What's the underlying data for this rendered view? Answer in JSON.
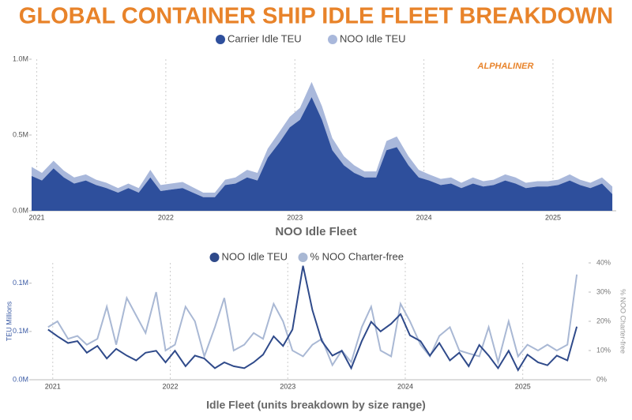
{
  "chart_data": [
    {
      "type": "area",
      "stacked": true,
      "title": "GLOBAL CONTAINER SHIP IDLE FLEET BREAKDOWN",
      "annotation": "ALPHALINER",
      "x": [
        2020.96,
        2021.04,
        2021.13,
        2021.21,
        2021.29,
        2021.38,
        2021.46,
        2021.54,
        2021.63,
        2021.71,
        2021.79,
        2021.88,
        2021.96,
        2022.04,
        2022.13,
        2022.21,
        2022.29,
        2022.38,
        2022.46,
        2022.54,
        2022.63,
        2022.71,
        2022.79,
        2022.88,
        2022.96,
        2023.04,
        2023.13,
        2023.21,
        2023.29,
        2023.38,
        2023.46,
        2023.54,
        2023.63,
        2023.71,
        2023.79,
        2023.88,
        2023.96,
        2024.04,
        2024.13,
        2024.21,
        2024.29,
        2024.38,
        2024.46,
        2024.54,
        2024.63,
        2024.71,
        2024.79,
        2024.88,
        2024.96,
        2025.04,
        2025.13,
        2025.21,
        2025.29,
        2025.38,
        2025.46
      ],
      "series": [
        {
          "name": "Carrier Idle TEU",
          "color": "#2e4f9c",
          "values": [
            230000,
            200000,
            280000,
            220000,
            180000,
            200000,
            170000,
            150000,
            120000,
            150000,
            120000,
            220000,
            130000,
            140000,
            150000,
            120000,
            90000,
            90000,
            170000,
            180000,
            220000,
            200000,
            350000,
            450000,
            550000,
            600000,
            750000,
            600000,
            400000,
            300000,
            250000,
            220000,
            220000,
            400000,
            420000,
            300000,
            220000,
            200000,
            170000,
            180000,
            150000,
            180000,
            160000,
            170000,
            200000,
            180000,
            150000,
            160000,
            160000,
            170000,
            200000,
            170000,
            150000,
            180000,
            110000
          ]
        },
        {
          "name": "NOO Idle TEU",
          "color": "#a9b8db",
          "values": [
            60000,
            50000,
            50000,
            45000,
            40000,
            40000,
            35000,
            35000,
            30000,
            30000,
            30000,
            50000,
            40000,
            40000,
            40000,
            35000,
            30000,
            30000,
            35000,
            40000,
            50000,
            50000,
            60000,
            70000,
            70000,
            80000,
            100000,
            90000,
            80000,
            60000,
            50000,
            40000,
            40000,
            60000,
            70000,
            60000,
            50000,
            40000,
            40000,
            40000,
            35000,
            40000,
            35000,
            35000,
            40000,
            40000,
            35000,
            35000,
            35000,
            35000,
            40000,
            35000,
            35000,
            40000,
            50000
          ]
        }
      ],
      "xlim": [
        2020.96,
        2025.49
      ],
      "xticks": [
        2021,
        2022,
        2023,
        2024,
        2025
      ],
      "ylim": [
        0,
        1000000
      ],
      "yticks": [
        {
          "value": 0,
          "label": "0.0M"
        },
        {
          "value": 500000,
          "label": "0.5M"
        },
        {
          "value": 1000000,
          "label": "1.0M"
        }
      ],
      "grid": true
    },
    {
      "type": "line",
      "title": "NOO Idle Fleet",
      "xlabel": "Idle Fleet (units breakdown by size range)",
      "ylabel": "TEU Millions",
      "y2label": "% NOO Charter-free",
      "x": [
        2020.96,
        2021.04,
        2021.13,
        2021.21,
        2021.29,
        2021.38,
        2021.46,
        2021.54,
        2021.63,
        2021.71,
        2021.79,
        2021.88,
        2021.96,
        2022.04,
        2022.13,
        2022.21,
        2022.29,
        2022.38,
        2022.46,
        2022.54,
        2022.63,
        2022.71,
        2022.79,
        2022.88,
        2022.96,
        2023.04,
        2023.13,
        2023.21,
        2023.29,
        2023.38,
        2023.46,
        2023.54,
        2023.63,
        2023.71,
        2023.79,
        2023.88,
        2023.96,
        2024.04,
        2024.13,
        2024.21,
        2024.29,
        2024.38,
        2024.46,
        2024.54,
        2024.63,
        2024.71,
        2024.79,
        2024.88,
        2024.96,
        2025.04,
        2025.13,
        2025.21,
        2025.29,
        2025.38,
        2025.46
      ],
      "series": [
        {
          "name": "NOO Idle TEU",
          "color": "#2f4a8a",
          "values": [
            52000,
            45000,
            38000,
            40000,
            28000,
            35000,
            22000,
            32000,
            25000,
            20000,
            28000,
            30000,
            18000,
            30000,
            14000,
            25000,
            22000,
            12000,
            18000,
            14000,
            12000,
            18000,
            26000,
            45000,
            35000,
            52000,
            118000,
            72000,
            40000,
            25000,
            30000,
            12000,
            40000,
            60000,
            50000,
            58000,
            68000,
            46000,
            40000,
            25000,
            38000,
            20000,
            28000,
            14000,
            36000,
            25000,
            12000,
            30000,
            10000,
            26000,
            18000,
            15000,
            25000,
            20000,
            55000
          ]
        },
        {
          "name": "% NOO Charter-free",
          "color": "#a9b8d4",
          "axis": "y2",
          "values": [
            18,
            20,
            14,
            15,
            12,
            14,
            25,
            12,
            28,
            22,
            16,
            30,
            10,
            12,
            25,
            20,
            8,
            18,
            28,
            10,
            12,
            16,
            14,
            26,
            20,
            10,
            8,
            12,
            14,
            5,
            10,
            6,
            18,
            25,
            10,
            8,
            26,
            20,
            12,
            8,
            15,
            18,
            10,
            9,
            8,
            18,
            6,
            20,
            8,
            12,
            10,
            12,
            10,
            12,
            36
          ]
        }
      ],
      "xlim": [
        2020.82,
        2025.56
      ],
      "xticks": [
        2021,
        2022,
        2023,
        2024,
        2025
      ],
      "ylim": [
        0,
        121000
      ],
      "yticks": [
        {
          "value": 0,
          "label": "0.0M"
        },
        {
          "value": 50000,
          "label": "0.1M"
        },
        {
          "value": 100000,
          "label": "0.1M"
        }
      ],
      "y2lim": [
        0,
        40
      ],
      "y2ticks": [
        {
          "value": 0,
          "label": "0%"
        },
        {
          "value": 10,
          "label": "10%"
        },
        {
          "value": 20,
          "label": "20%"
        },
        {
          "value": 30,
          "label": "30%"
        },
        {
          "value": 40,
          "label": "40%"
        }
      ],
      "grid": true
    }
  ]
}
